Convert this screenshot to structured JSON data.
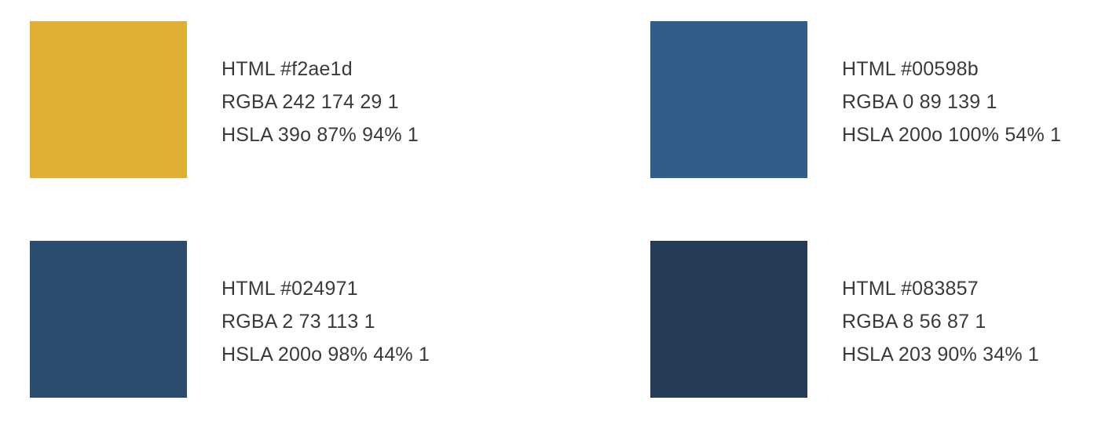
{
  "swatches": [
    {
      "color": "#e0ae33",
      "html": "HTML #f2ae1d",
      "rgba": "RGBA 242 174 29 1",
      "hsla": "HSLA 39o 87% 94% 1"
    },
    {
      "color": "#335d89",
      "html": "HTML #00598b",
      "rgba": "RGBA 0 89 139 1",
      "hsla": "HSLA 200o 100% 54% 1"
    },
    {
      "color": "#2b4c6e",
      "html": "HTML #024971",
      "rgba": "RGBA 2 73 113 1",
      "hsla": "HSLA 200o 98% 44% 1"
    },
    {
      "color": "#253b58",
      "html": "HTML #083857",
      "rgba": "RGBA 8 56 87 1",
      "hsla": "HSLA 203 90% 34% 1"
    }
  ]
}
